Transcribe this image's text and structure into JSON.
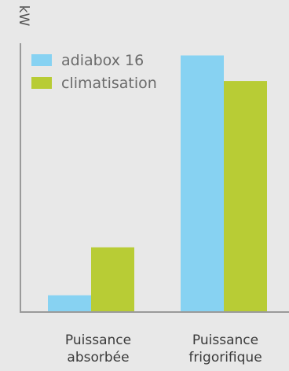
{
  "chart_data": {
    "type": "bar",
    "ylabel": "kW",
    "xlabel": "",
    "categories": [
      [
        "Puissance",
        "absorbée"
      ],
      [
        "Puissance",
        "frigorifique"
      ]
    ],
    "series": [
      {
        "name": "adiabox 16",
        "color": "#87d2f2",
        "values": [
          1,
          16
        ]
      },
      {
        "name": "climatisation",
        "color": "#b8cc35",
        "values": [
          4,
          14.4
        ]
      }
    ],
    "ylim": [
      0,
      17.5
    ],
    "grid": false,
    "legend_position": "top-left"
  }
}
